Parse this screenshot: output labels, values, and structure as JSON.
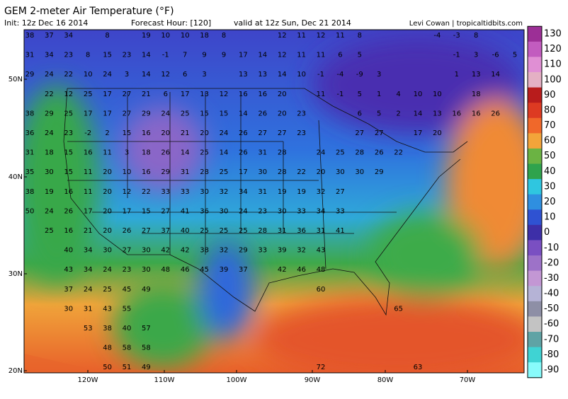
{
  "header": {
    "title": "GEM 2-meter Air Temperature (°F)",
    "init": "Init: 12z Dec 16 2014",
    "forecast_hour": "Forecast Hour: [120]",
    "valid": "valid at 12z Sun, Dec 21 2014",
    "credit": "Levi Cowan | tropicaltidbits.com"
  },
  "map": {
    "lat_labels": [
      "50N",
      "40N",
      "30N",
      "20N"
    ],
    "lon_labels": [
      "120W",
      "110W",
      "100W",
      "90W",
      "80W",
      "70W"
    ],
    "station_values": [
      [
        38,
        37,
        34,
        null,
        8,
        null,
        19,
        10,
        10,
        18,
        8,
        null,
        null,
        12,
        11,
        12,
        11,
        8,
        null,
        null,
        null,
        -4,
        -3,
        8,
        null,
        null
      ],
      [
        31,
        34,
        23,
        8,
        15,
        23,
        14,
        -1,
        7,
        9,
        9,
        17,
        14,
        12,
        11,
        11,
        6,
        5,
        null,
        null,
        null,
        null,
        -1,
        3,
        -6,
        5
      ],
      [
        29,
        24,
        22,
        10,
        24,
        3,
        14,
        12,
        6,
        3,
        null,
        13,
        13,
        14,
        10,
        -1,
        -4,
        -9,
        3,
        null,
        null,
        null,
        1,
        13,
        14,
        null
      ],
      [
        null,
        22,
        12,
        25,
        17,
        27,
        21,
        6,
        17,
        13,
        12,
        16,
        16,
        20,
        null,
        11,
        -1,
        5,
        1,
        4,
        10,
        10,
        null,
        18,
        null,
        null
      ],
      [
        38,
        29,
        25,
        17,
        17,
        27,
        29,
        24,
        25,
        15,
        15,
        14,
        26,
        20,
        23,
        null,
        null,
        6,
        5,
        2,
        14,
        13,
        16,
        16,
        26,
        null
      ],
      [
        36,
        24,
        23,
        -2,
        2,
        15,
        16,
        20,
        21,
        20,
        24,
        26,
        27,
        27,
        23,
        null,
        null,
        27,
        27,
        null,
        17,
        20,
        null,
        null,
        null,
        null
      ],
      [
        31,
        18,
        15,
        16,
        11,
        3,
        18,
        26,
        14,
        25,
        14,
        26,
        31,
        28,
        null,
        24,
        25,
        28,
        26,
        22,
        null,
        null,
        null,
        null,
        null,
        null
      ],
      [
        35,
        30,
        15,
        11,
        20,
        10,
        16,
        29,
        31,
        28,
        25,
        17,
        30,
        28,
        22,
        20,
        30,
        30,
        29,
        null,
        null,
        null,
        null,
        null,
        null,
        null
      ],
      [
        38,
        19,
        16,
        11,
        20,
        12,
        22,
        33,
        33,
        30,
        32,
        34,
        31,
        19,
        19,
        32,
        27,
        null,
        null,
        null,
        null,
        null,
        null,
        null,
        null,
        null
      ],
      [
        50,
        24,
        26,
        17,
        20,
        17,
        15,
        27,
        41,
        36,
        30,
        24,
        23,
        30,
        33,
        34,
        33,
        null,
        null,
        null,
        null,
        null,
        null,
        null,
        null,
        null
      ],
      [
        null,
        25,
        16,
        21,
        20,
        26,
        27,
        37,
        40,
        25,
        25,
        25,
        28,
        31,
        36,
        31,
        41,
        null,
        null,
        null,
        null,
        null,
        null,
        null,
        null,
        null
      ],
      [
        null,
        null,
        40,
        34,
        30,
        27,
        30,
        42,
        42,
        38,
        32,
        29,
        33,
        39,
        32,
        43,
        null,
        null,
        null,
        null,
        null,
        null,
        null,
        null,
        null,
        null
      ],
      [
        null,
        null,
        43,
        34,
        24,
        23,
        30,
        48,
        46,
        45,
        39,
        37,
        null,
        42,
        46,
        48,
        null,
        null,
        null,
        null,
        null,
        null,
        null,
        null,
        null,
        null
      ],
      [
        null,
        null,
        37,
        24,
        25,
        45,
        49,
        null,
        null,
        null,
        null,
        null,
        null,
        null,
        null,
        60,
        null,
        null,
        null,
        null,
        null,
        null,
        null,
        null,
        null,
        null
      ],
      [
        null,
        null,
        30,
        31,
        43,
        55,
        null,
        null,
        null,
        null,
        null,
        null,
        null,
        null,
        null,
        null,
        null,
        null,
        null,
        65,
        null,
        null,
        null,
        null,
        null,
        null
      ],
      [
        null,
        null,
        null,
        53,
        38,
        40,
        57,
        null,
        null,
        null,
        null,
        null,
        null,
        null,
        null,
        null,
        null,
        null,
        null,
        null,
        null,
        null,
        null,
        null,
        null,
        null
      ],
      [
        null,
        null,
        null,
        null,
        48,
        58,
        58,
        null,
        null,
        null,
        null,
        null,
        null,
        null,
        null,
        null,
        null,
        null,
        null,
        null,
        null,
        null,
        null,
        null,
        null,
        null
      ],
      [
        null,
        null,
        null,
        null,
        50,
        51,
        49,
        null,
        null,
        null,
        null,
        null,
        null,
        null,
        null,
        72,
        null,
        null,
        null,
        null,
        63,
        null,
        null,
        null,
        null,
        null
      ]
    ]
  },
  "colorbar": {
    "ticks": [
      130,
      120,
      110,
      100,
      90,
      80,
      70,
      60,
      50,
      40,
      30,
      20,
      10,
      0,
      -10,
      -20,
      -30,
      -40,
      -50,
      -60,
      -70,
      -80,
      -90
    ],
    "colors": [
      "#9c2f96",
      "#c25cbf",
      "#e08fd4",
      "#e4b0c4",
      "#b81c1c",
      "#dd3a22",
      "#f0682a",
      "#f3a43a",
      "#6bb343",
      "#2fa34d",
      "#2fc6e0",
      "#2f8fe0",
      "#2f52d2",
      "#3d2fa8",
      "#7a4fc2",
      "#9d72c8",
      "#c397d4",
      "#b5b3d6",
      "#8e8fa6",
      "#c3c3c3",
      "#5fa3a5",
      "#3fd3d3",
      "#88fbfb"
    ]
  }
}
